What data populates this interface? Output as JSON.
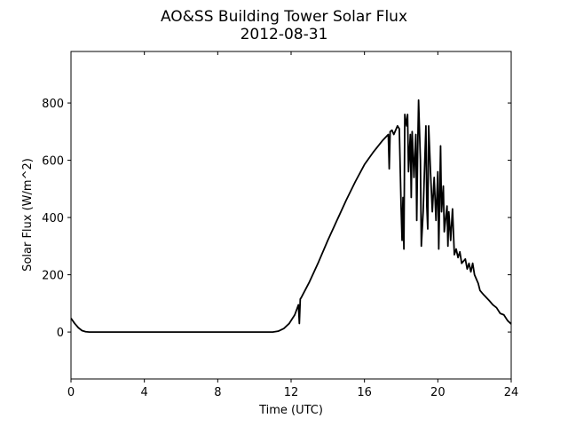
{
  "chart_data": {
    "type": "line",
    "title": "AO&SS Building Tower Solar Flux",
    "subtitle": "2012-08-31",
    "x_label": "Time (UTC)",
    "y_label": "Solar Flux (W/m^2)",
    "color": "#000000",
    "x": [
      0,
      0.2,
      0.4,
      0.6,
      0.8,
      1,
      2,
      4,
      6,
      8,
      10,
      11,
      11.3,
      11.6,
      11.9,
      12.2,
      12.4,
      12.45,
      12.5,
      12.55,
      13,
      13.5,
      14,
      14.5,
      15,
      15.5,
      16,
      16.5,
      17,
      17.3,
      17.35,
      17.4,
      17.5,
      17.6,
      17.8,
      17.9,
      18,
      18.05,
      18.1,
      18.15,
      18.2,
      18.3,
      18.35,
      18.4,
      18.5,
      18.55,
      18.6,
      18.7,
      18.8,
      18.85,
      18.9,
      18.95,
      19.05,
      19.1,
      19.2,
      19.35,
      19.4,
      19.45,
      19.5,
      19.6,
      19.7,
      19.8,
      19.9,
      20,
      20.05,
      20.15,
      20.2,
      20.3,
      20.35,
      20.5,
      20.55,
      20.6,
      20.7,
      20.8,
      20.9,
      21,
      21.1,
      21.2,
      21.3,
      21.5,
      21.6,
      21.7,
      21.8,
      21.9,
      22,
      22.2,
      22.3,
      22.5,
      22.8,
      23,
      23.2,
      23.4,
      23.6,
      23.8,
      24
    ],
    "values": [
      48,
      30,
      15,
      5,
      1,
      0,
      0,
      0,
      0,
      0,
      0,
      0,
      3,
      12,
      30,
      60,
      95,
      30,
      115,
      120,
      175,
      245,
      320,
      390,
      460,
      525,
      585,
      630,
      670,
      690,
      570,
      700,
      705,
      690,
      720,
      710,
      430,
      320,
      470,
      290,
      760,
      720,
      760,
      560,
      690,
      470,
      700,
      540,
      690,
      390,
      630,
      810,
      600,
      300,
      420,
      720,
      440,
      360,
      720,
      560,
      420,
      540,
      390,
      560,
      290,
      650,
      420,
      510,
      350,
      440,
      300,
      420,
      320,
      430,
      270,
      290,
      260,
      280,
      240,
      255,
      220,
      240,
      210,
      240,
      200,
      170,
      145,
      130,
      110,
      95,
      85,
      65,
      60,
      40,
      28
    ],
    "xlim": [
      0,
      24
    ],
    "xticks": [
      0,
      4,
      8,
      12,
      16,
      20,
      24
    ],
    "ylim": [
      -164,
      980
    ],
    "yticks": [
      0,
      200,
      400,
      600,
      800
    ]
  }
}
